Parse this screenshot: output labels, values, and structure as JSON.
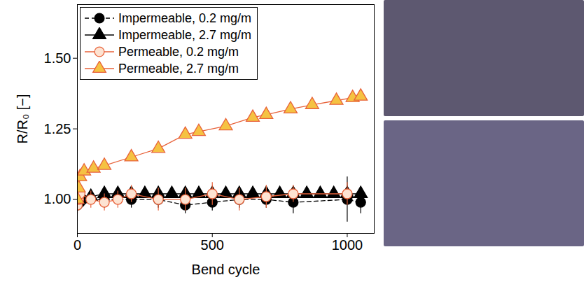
{
  "chart_data": {
    "type": "line",
    "x_label": "Bend cycle",
    "y_label": "R/R₀ [−]",
    "xlim": [
      0,
      1100
    ],
    "xticks": [
      0,
      500,
      1000
    ],
    "ylim": [
      0.88,
      1.69
    ],
    "yticks": [
      {
        "value": 1,
        "label": "1.00"
      },
      {
        "value": 1.25,
        "label": "1.25"
      },
      {
        "value": 1.5,
        "label": "1.50"
      }
    ],
    "grid": false,
    "legend": "upper left",
    "series": [
      {
        "name": "Impermeable, 0.2 mg/m",
        "color": "#000000",
        "marker": "circle",
        "line_style": "dashed",
        "x": [
          0,
          5,
          10,
          20,
          100,
          200,
          300,
          400,
          500,
          600,
          700,
          800,
          1000,
          1050
        ],
        "values": [
          0.98,
          1.0,
          0.99,
          1.0,
          1.0,
          1.0,
          1.0,
          0.98,
          0.99,
          1.0,
          1.0,
          0.99,
          1.0,
          0.99
        ],
        "errors": [
          0.02,
          0.02,
          0.02,
          0.02,
          0.03,
          0.03,
          0.03,
          0.03,
          0.03,
          0.03,
          0.03,
          0.04,
          0.08,
          0.04
        ]
      },
      {
        "name": "Impermeable, 2.7 mg/m",
        "color": "#000000",
        "marker": "triangle",
        "line_style": "solid",
        "x": [
          0,
          5,
          10,
          50,
          100,
          150,
          200,
          250,
          300,
          350,
          400,
          450,
          500,
          550,
          600,
          650,
          700,
          750,
          800,
          850,
          900,
          950,
          1000,
          1050
        ],
        "values": [
          1.0,
          1.01,
          1.01,
          1.01,
          1.02,
          1.02,
          1.02,
          1.02,
          1.02,
          1.02,
          1.02,
          1.02,
          1.02,
          1.02,
          1.02,
          1.02,
          1.02,
          1.02,
          1.02,
          1.02,
          1.02,
          1.02,
          1.02,
          1.02
        ],
        "errors": [
          0.01,
          0.01,
          0.01,
          0.01,
          0.01,
          0.01,
          0.01,
          0.01,
          0.01,
          0.01,
          0.01,
          0.01,
          0.01,
          0.01,
          0.01,
          0.01,
          0.01,
          0.01,
          0.01,
          0.01,
          0.01,
          0.01,
          0.01,
          0.01
        ]
      },
      {
        "name": "Permeable, 0.2 mg/m",
        "color": "#e8623a",
        "marker": "circle-open",
        "line_style": "solid",
        "x": [
          0,
          5,
          10,
          50,
          100,
          150,
          200,
          300,
          400,
          500,
          600,
          700,
          800,
          1000
        ],
        "values": [
          0.98,
          1.0,
          1.02,
          1.0,
          0.99,
          1.0,
          1.02,
          1.0,
          1.0,
          1.02,
          1.0,
          1.01,
          1.02,
          1.02
        ],
        "errors": [
          0.03,
          0.03,
          0.03,
          0.03,
          0.03,
          0.03,
          0.03,
          0.04,
          0.04,
          0.04,
          0.04,
          0.04,
          0.03,
          0.04
        ]
      },
      {
        "name": "Permeable, 2.7 mg/m",
        "color": "#f5c242",
        "marker": "triangle",
        "line_style": "solid",
        "x": [
          0,
          5,
          10,
          25,
          60,
          100,
          200,
          300,
          400,
          450,
          550,
          650,
          700,
          790,
          870,
          960,
          1020,
          1050
        ],
        "values": [
          1.0,
          1.04,
          1.08,
          1.1,
          1.11,
          1.12,
          1.15,
          1.18,
          1.23,
          1.24,
          1.26,
          1.29,
          1.3,
          1.32,
          1.335,
          1.35,
          1.36,
          1.365
        ],
        "errors": [
          0.005,
          0.005,
          0.005,
          0.005,
          0.005,
          0.005,
          0.005,
          0.005,
          0.005,
          0.005,
          0.005,
          0.005,
          0.005,
          0.005,
          0.005,
          0.005,
          0.005,
          0.005
        ]
      }
    ]
  }
}
